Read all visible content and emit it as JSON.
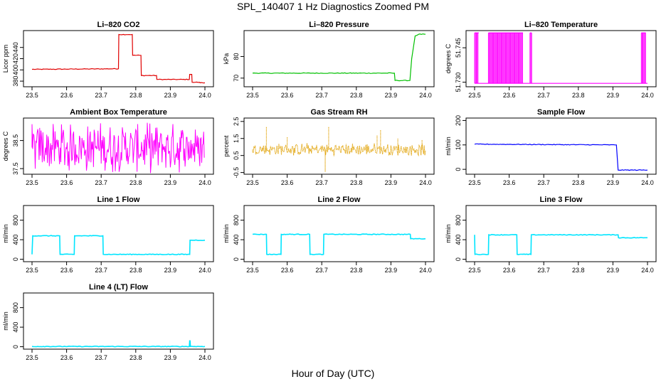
{
  "figure": {
    "title": "SPL_140407  1 Hz Diagnostics Zoomed PM",
    "xlabel": "Hour of Day (UTC)"
  },
  "chart_data": [
    {
      "id": "co2",
      "type": "line",
      "title": "Li–820 CO2",
      "ylabel": "Licor ppm",
      "color": "#e00000",
      "style": "step",
      "xlim": [
        23.5,
        24.0
      ],
      "ylim": [
        370,
        470
      ],
      "xticks": [
        23.5,
        23.6,
        23.7,
        23.8,
        23.9,
        24.0
      ],
      "xtick_labels": [
        "23.5",
        "23.6",
        "23.7",
        "23.8",
        "23.9",
        "24.0"
      ],
      "yticks": [
        380,
        400,
        420,
        440
      ],
      "ytick_labels": [
        "380",
        "400",
        "420",
        "440"
      ],
      "series": [
        {
          "name": "CO2",
          "x": [
            23.5,
            23.75,
            23.751,
            23.79,
            23.791,
            23.815,
            23.816,
            23.86,
            23.861,
            23.955,
            23.956,
            23.962,
            23.963,
            23.985,
            23.986,
            24.0
          ],
          "y": [
            401,
            402,
            463,
            463,
            426,
            426,
            390,
            390,
            383,
            383,
            392,
            392,
            378,
            378,
            377,
            377
          ]
        }
      ]
    },
    {
      "id": "pressure",
      "type": "line",
      "title": "Li–820 Pressure",
      "ylabel": "kPa",
      "color": "#00c000",
      "style": "step",
      "xlim": [
        23.5,
        24.0
      ],
      "ylim": [
        66,
        92
      ],
      "xticks": [
        23.5,
        23.6,
        23.7,
        23.8,
        23.9,
        24.0
      ],
      "xtick_labels": [
        "23.5",
        "23.6",
        "23.7",
        "23.8",
        "23.9",
        "24.0"
      ],
      "yticks": [
        70,
        80
      ],
      "ytick_labels": [
        "70",
        "80"
      ],
      "series": [
        {
          "name": "Pressure",
          "x": [
            23.5,
            23.91,
            23.912,
            23.955,
            23.96,
            23.97,
            23.98,
            24.0
          ],
          "y": [
            72.3,
            72.3,
            68.9,
            68.9,
            79,
            89.5,
            90.3,
            90.3
          ]
        }
      ]
    },
    {
      "id": "licor-temp",
      "type": "line",
      "title": "Li–820 Temperature",
      "ylabel": "degrees C",
      "color": "#ff00ff",
      "style": "burst",
      "xlim": [
        23.5,
        24.0
      ],
      "ylim": [
        51.728,
        51.7525
      ],
      "xticks": [
        23.5,
        23.6,
        23.7,
        23.8,
        23.9,
        24.0
      ],
      "xtick_labels": [
        "23.5",
        "23.6",
        "23.7",
        "23.8",
        "23.9",
        "24.0"
      ],
      "yticks": [
        51.73,
        51.745
      ],
      "ytick_labels": [
        "51.730",
        "51.745"
      ],
      "series": [
        {
          "name": "Temperature",
          "base": 51.7295,
          "top": 51.7515,
          "bursts": [
            [
              23.5,
              23.512
            ],
            [
              23.54,
              23.64
            ],
            [
              23.66,
              23.665
            ],
            [
              23.982,
              23.995
            ]
          ]
        }
      ]
    },
    {
      "id": "ambient-temp",
      "type": "line",
      "title": "Ambient Box Temperature",
      "ylabel": "degrees C",
      "color": "#ff00ff",
      "style": "noise",
      "xlim": [
        23.5,
        24.0
      ],
      "ylim": [
        37.3,
        39.3
      ],
      "xticks": [
        23.5,
        23.6,
        23.7,
        23.8,
        23.9,
        24.0
      ],
      "xtick_labels": [
        "23.5",
        "23.6",
        "23.7",
        "23.8",
        "23.9",
        "24.0"
      ],
      "yticks": [
        37.5,
        38.5
      ],
      "ytick_labels": [
        "37.5",
        "38.5"
      ],
      "series": [
        {
          "name": "Ambient",
          "x": [
            23.5,
            24.0
          ],
          "y": [
            38.25,
            38.25
          ],
          "spread": 0.95
        }
      ]
    },
    {
      "id": "gas-rh",
      "type": "scatter",
      "title": "Gas Stream RH",
      "ylabel": "percent",
      "color": "#e0a000",
      "style": "noise-dots",
      "xlim": [
        23.5,
        24.0
      ],
      "ylim": [
        -0.6,
        2.7
      ],
      "xticks": [
        23.5,
        23.6,
        23.7,
        23.8,
        23.9,
        24.0
      ],
      "xtick_labels": [
        "23.5",
        "23.6",
        "23.7",
        "23.8",
        "23.9",
        "24.0"
      ],
      "yticks": [
        -0.5,
        0.5,
        1.5,
        2.5
      ],
      "ytick_labels": [
        "-0.5",
        "0.5",
        "1.5",
        "2.5"
      ],
      "series": [
        {
          "name": "RH",
          "x": [
            23.5,
            24.0
          ],
          "y": [
            0.85,
            0.85
          ],
          "spread": 0.4,
          "spikes": [
            [
              23.54,
              2.2
            ],
            [
              23.6,
              1.6
            ],
            [
              23.71,
              -0.45
            ],
            [
              23.72,
              2.2
            ],
            [
              23.86,
              1.7
            ],
            [
              23.87,
              2.0
            ],
            [
              23.92,
              1.5
            ],
            [
              23.99,
              1.4
            ]
          ]
        }
      ]
    },
    {
      "id": "sample-flow",
      "type": "line",
      "title": "Sample Flow",
      "ylabel": "ml/min",
      "color": "#0000ff",
      "style": "step",
      "xlim": [
        23.5,
        24.0
      ],
      "ylim": [
        -20,
        210
      ],
      "xticks": [
        23.5,
        23.6,
        23.7,
        23.8,
        23.9,
        24.0
      ],
      "xtick_labels": [
        "23.5",
        "23.6",
        "23.7",
        "23.8",
        "23.9",
        "24.0"
      ],
      "yticks": [
        0,
        100,
        200
      ],
      "ytick_labels": [
        "0",
        "100",
        "200"
      ],
      "series": [
        {
          "name": "Sample",
          "x": [
            23.5,
            23.91,
            23.915,
            24.0
          ],
          "y": [
            103,
            100,
            -3,
            -3
          ]
        }
      ]
    },
    {
      "id": "line1-flow",
      "type": "line",
      "title": "Line 1 Flow",
      "ylabel": "ml/min",
      "color": "#00e5ff",
      "style": "step",
      "xlim": [
        23.5,
        24.0
      ],
      "ylim": [
        -50,
        1100
      ],
      "xticks": [
        23.5,
        23.6,
        23.7,
        23.8,
        23.9,
        24.0
      ],
      "xtick_labels": [
        "23.5",
        "23.6",
        "23.7",
        "23.8",
        "23.9",
        "24.0"
      ],
      "yticks": [
        0,
        400,
        800
      ],
      "ytick_labels": [
        "0",
        "400",
        "800"
      ],
      "series": [
        {
          "name": "Line 1",
          "x": [
            23.5,
            23.502,
            23.58,
            23.581,
            23.622,
            23.623,
            23.705,
            23.706,
            23.956,
            23.957,
            24.0
          ],
          "y": [
            100,
            480,
            480,
            100,
            100,
            480,
            480,
            100,
            100,
            390,
            390
          ]
        }
      ]
    },
    {
      "id": "line2-flow",
      "type": "line",
      "title": "Line 2 Flow",
      "ylabel": "ml/min",
      "color": "#00e5ff",
      "style": "step",
      "xlim": [
        23.5,
        24.0
      ],
      "ylim": [
        -50,
        1100
      ],
      "xticks": [
        23.5,
        23.6,
        23.7,
        23.8,
        23.9,
        24.0
      ],
      "xtick_labels": [
        "23.5",
        "23.6",
        "23.7",
        "23.8",
        "23.9",
        "24.0"
      ],
      "yticks": [
        0,
        400,
        800
      ],
      "ytick_labels": [
        "0",
        "400",
        "800"
      ],
      "series": [
        {
          "name": "Line 2",
          "x": [
            23.5,
            23.54,
            23.541,
            23.582,
            23.583,
            23.665,
            23.666,
            23.705,
            23.706,
            23.956,
            23.957,
            24.0
          ],
          "y": [
            510,
            510,
            100,
            100,
            510,
            510,
            100,
            100,
            510,
            510,
            420,
            420
          ]
        }
      ]
    },
    {
      "id": "line3-flow",
      "type": "line",
      "title": "Line 3 Flow",
      "ylabel": "ml/min",
      "color": "#00e5ff",
      "style": "step",
      "xlim": [
        23.5,
        24.0
      ],
      "ylim": [
        -50,
        1100
      ],
      "xticks": [
        23.5,
        23.6,
        23.7,
        23.8,
        23.9,
        24.0
      ],
      "xtick_labels": [
        "23.5",
        "23.6",
        "23.7",
        "23.8",
        "23.9",
        "24.0"
      ],
      "yticks": [
        0,
        400,
        800
      ],
      "ytick_labels": [
        "0",
        "400",
        "800"
      ],
      "series": [
        {
          "name": "Line 3",
          "x": [
            23.5,
            23.501,
            23.54,
            23.541,
            23.622,
            23.623,
            23.663,
            23.664,
            23.915,
            23.916,
            24.0
          ],
          "y": [
            500,
            100,
            100,
            500,
            500,
            100,
            100,
            500,
            500,
            440,
            440
          ]
        }
      ]
    },
    {
      "id": "line4-flow",
      "type": "line",
      "title": "Line 4 (LT) Flow",
      "ylabel": "ml/min",
      "color": "#00e5ff",
      "style": "step",
      "xlim": [
        23.5,
        24.0
      ],
      "ylim": [
        -50,
        1100
      ],
      "xticks": [
        23.5,
        23.6,
        23.7,
        23.8,
        23.9,
        24.0
      ],
      "xtick_labels": [
        "23.5",
        "23.6",
        "23.7",
        "23.8",
        "23.9",
        "24.0"
      ],
      "yticks": [
        0,
        400,
        800
      ],
      "ytick_labels": [
        "0",
        "400",
        "800"
      ],
      "series": [
        {
          "name": "Line 4",
          "x": [
            23.5,
            23.955,
            23.956,
            23.957,
            23.958,
            24.0
          ],
          "y": [
            5,
            5,
            120,
            120,
            5,
            5
          ]
        }
      ]
    }
  ]
}
